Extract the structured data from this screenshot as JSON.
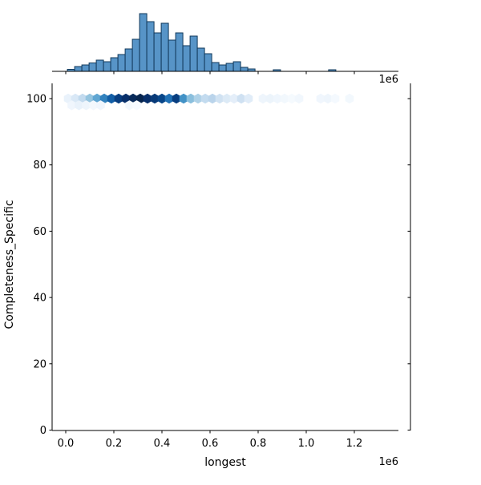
{
  "figure": {
    "background": "#ffffff",
    "x_axis": {
      "label": "longest",
      "offset_label": "1e6",
      "tick_values": [
        0.0,
        0.2,
        0.4,
        0.6,
        0.8,
        1.0,
        1.2
      ],
      "tick_labels": [
        "0.0",
        "0.2",
        "0.4",
        "0.6",
        "0.8",
        "1.0",
        "1.2"
      ]
    },
    "y_axis": {
      "label": "Completeness_Specific",
      "tick_values": [
        0,
        20,
        40,
        60,
        80,
        100
      ],
      "tick_labels": [
        "0",
        "20",
        "40",
        "60",
        "80",
        "100"
      ]
    }
  },
  "chart_data": [
    {
      "type": "bar",
      "role": "top-marginal-histogram",
      "variable": "longest",
      "x_units": "1e6",
      "note": "heights are relative (no count axis shown in image)",
      "bin_width": 0.03,
      "bins_left": [
        0.007,
        0.037,
        0.067,
        0.097,
        0.127,
        0.157,
        0.187,
        0.217,
        0.247,
        0.277,
        0.307,
        0.337,
        0.367,
        0.397,
        0.427,
        0.457,
        0.487,
        0.517,
        0.547,
        0.577,
        0.607,
        0.637,
        0.667,
        0.697,
        0.727,
        0.757,
        0.863,
        1.093
      ],
      "heights": [
        2.5,
        6,
        8,
        10.5,
        14,
        12,
        17,
        21,
        28,
        40,
        72,
        62,
        48,
        60,
        39,
        48,
        32,
        44,
        29,
        22,
        11,
        8,
        10,
        12,
        5,
        3,
        2,
        2
      ],
      "bar_fill": "#5794c7",
      "bar_edge": "#12395b"
    },
    {
      "type": "hexbin",
      "role": "joint-axes",
      "xlabel": "longest",
      "ylabel": "Completeness_Specific",
      "x_units": "1e6",
      "xlim": [
        -0.057,
        1.383
      ],
      "ylim": [
        0,
        104.4
      ],
      "colormap": "Blues",
      "points": [
        {
          "x": 0.01,
          "y": 100,
          "color": "#e9f2fb"
        },
        {
          "x": 0.04,
          "y": 100,
          "color": "#d9e8f6"
        },
        {
          "x": 0.07,
          "y": 100,
          "color": "#c2daee"
        },
        {
          "x": 0.1,
          "y": 100,
          "color": "#94c4df"
        },
        {
          "x": 0.13,
          "y": 100,
          "color": "#60a6d2"
        },
        {
          "x": 0.16,
          "y": 100,
          "color": "#3282be"
        },
        {
          "x": 0.19,
          "y": 100,
          "color": "#125ea6"
        },
        {
          "x": 0.22,
          "y": 100,
          "color": "#083e80"
        },
        {
          "x": 0.25,
          "y": 100,
          "color": "#08306b"
        },
        {
          "x": 0.28,
          "y": 100,
          "color": "#082a5a"
        },
        {
          "x": 0.31,
          "y": 100,
          "color": "#08264f"
        },
        {
          "x": 0.34,
          "y": 100,
          "color": "#08306b"
        },
        {
          "x": 0.37,
          "y": 100,
          "color": "#083a78"
        },
        {
          "x": 0.4,
          "y": 100,
          "color": "#084689"
        },
        {
          "x": 0.43,
          "y": 100,
          "color": "#2171b5"
        },
        {
          "x": 0.46,
          "y": 100,
          "color": "#083e80"
        },
        {
          "x": 0.49,
          "y": 100,
          "color": "#4292c6"
        },
        {
          "x": 0.52,
          "y": 100,
          "color": "#8abfdd"
        },
        {
          "x": 0.55,
          "y": 100,
          "color": "#aed1e7"
        },
        {
          "x": 0.58,
          "y": 100,
          "color": "#c3dbef"
        },
        {
          "x": 0.61,
          "y": 100,
          "color": "#bad4eb"
        },
        {
          "x": 0.64,
          "y": 100,
          "color": "#d0e2f2"
        },
        {
          "x": 0.67,
          "y": 100,
          "color": "#dceaf6"
        },
        {
          "x": 0.7,
          "y": 100,
          "color": "#e4eef9"
        },
        {
          "x": 0.73,
          "y": 100,
          "color": "#cfe1f2"
        },
        {
          "x": 0.76,
          "y": 100,
          "color": "#e0ecf8"
        },
        {
          "x": 0.82,
          "y": 100,
          "color": "#eef5fc"
        },
        {
          "x": 0.85,
          "y": 100,
          "color": "#ecf4fb"
        },
        {
          "x": 0.88,
          "y": 100,
          "color": "#eff6fd"
        },
        {
          "x": 0.91,
          "y": 100,
          "color": "#f2f8fd"
        },
        {
          "x": 0.94,
          "y": 100,
          "color": "#f5fafe"
        },
        {
          "x": 0.97,
          "y": 100,
          "color": "#f1f7fd"
        },
        {
          "x": 1.06,
          "y": 100,
          "color": "#f0f6fd"
        },
        {
          "x": 1.09,
          "y": 100,
          "color": "#eef5fc"
        },
        {
          "x": 1.12,
          "y": 100,
          "color": "#f4f9fe"
        },
        {
          "x": 1.18,
          "y": 100,
          "color": "#f2f8fd"
        },
        {
          "x": 0.025,
          "y": 98,
          "color": "#f0f6fd"
        },
        {
          "x": 0.055,
          "y": 98,
          "color": "#e9f2fb"
        },
        {
          "x": 0.085,
          "y": 98,
          "color": "#eef5fc"
        },
        {
          "x": 0.115,
          "y": 98,
          "color": "#f3f8fd"
        },
        {
          "x": 0.145,
          "y": 98,
          "color": "#f0f6fd"
        },
        {
          "x": 0.265,
          "y": 98,
          "color": "#f3f8fd"
        },
        {
          "x": 0.295,
          "y": 98,
          "color": "#f6faff"
        }
      ]
    }
  ]
}
